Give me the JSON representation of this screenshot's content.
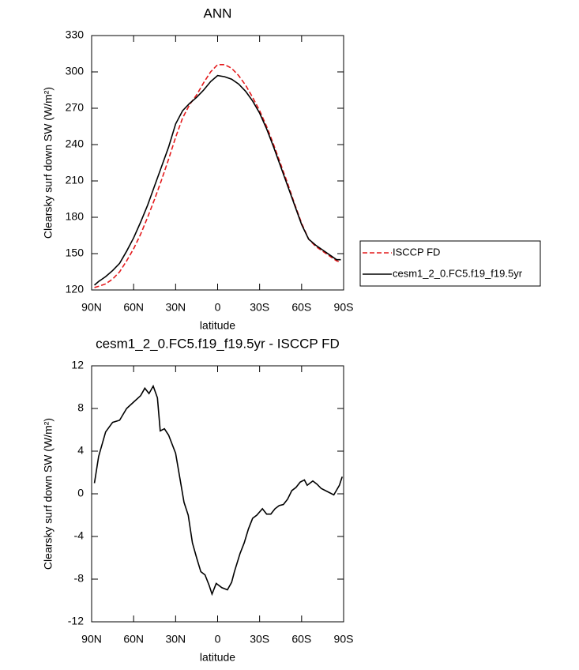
{
  "chart_data": [
    {
      "type": "line",
      "title": "ANN",
      "xlabel": "latitude",
      "ylabel": "Clearsky surf down SW (W/m²)",
      "x": [
        88,
        85,
        80,
        75,
        70,
        65,
        60,
        55,
        50,
        45,
        40,
        35,
        30,
        25,
        20,
        15,
        10,
        5,
        0,
        -5,
        -10,
        -15,
        -20,
        -25,
        -30,
        -35,
        -40,
        -45,
        -50,
        -55,
        -60,
        -65,
        -70,
        -75,
        -80,
        -85,
        -88
      ],
      "series": [
        {
          "name": "ISCCP FD",
          "color": "#e41a1c",
          "dash": true,
          "values": [
            122,
            123,
            125,
            129,
            135,
            144,
            154,
            166,
            180,
            195,
            211,
            228,
            246,
            262,
            273,
            281,
            291,
            300,
            306,
            306,
            303,
            297,
            289,
            279,
            268,
            255,
            240,
            224,
            208,
            191,
            175,
            162,
            156,
            152,
            148,
            144,
            143
          ]
        },
        {
          "name": "cesm1_2_0.FC5.f19_f19.5yr",
          "color": "#000000",
          "dash": false,
          "values": [
            124,
            127,
            131,
            136,
            142,
            152,
            163,
            176,
            190,
            206,
            222,
            238,
            257,
            268,
            274,
            279,
            285,
            292,
            297,
            296,
            294,
            290,
            284,
            276,
            266,
            253,
            238,
            222,
            206,
            190,
            174,
            162,
            157,
            153,
            149,
            145,
            145
          ]
        }
      ],
      "xlim": [
        90,
        -90
      ],
      "xticks": [
        {
          "value": 90,
          "label": "90N"
        },
        {
          "value": 60,
          "label": "60N"
        },
        {
          "value": 30,
          "label": "30N"
        },
        0,
        {
          "value": -30,
          "label": "30S"
        },
        {
          "value": -60,
          "label": "60S"
        },
        {
          "value": -90,
          "label": "90S"
        }
      ],
      "ylim": [
        120,
        330
      ],
      "yticks": [
        120,
        150,
        180,
        210,
        240,
        270,
        300,
        330
      ],
      "legend": "right"
    },
    {
      "type": "line",
      "title": "cesm1_2_0.FC5.f19_f19.5yr - ISCCP FD",
      "xlabel": "latitude",
      "ylabel": "Clearsky surf down SW (W/m²)",
      "x": [
        88,
        85,
        80,
        75,
        70,
        65,
        60,
        55,
        52,
        49,
        46,
        43,
        41,
        38,
        35,
        30,
        27,
        24,
        21,
        18,
        15,
        12,
        9,
        6,
        4,
        1,
        -3,
        -7,
        -10,
        -12,
        -16,
        -19,
        -22,
        -25,
        -28,
        -32,
        -35,
        -38,
        -41,
        -44,
        -47,
        -50,
        -53,
        -56,
        -59,
        -62,
        -64,
        -68,
        -71,
        -74,
        -80,
        -83,
        -87,
        -89
      ],
      "color": "#000000",
      "values": [
        1,
        3.5,
        5.8,
        6.7,
        6.9,
        8,
        8.6,
        9.2,
        9.9,
        9.4,
        10.1,
        9,
        5.9,
        6.1,
        5.5,
        3.8,
        1.5,
        -0.8,
        -2,
        -4.6,
        -6,
        -7.3,
        -7.6,
        -8.6,
        -9.4,
        -8.4,
        -8.8,
        -9,
        -8.3,
        -7.3,
        -5.6,
        -4.6,
        -3.3,
        -2.3,
        -2,
        -1.4,
        -1.9,
        -1.9,
        -1.4,
        -1.1,
        -1,
        -0.5,
        0.3,
        0.6,
        1.1,
        1.3,
        0.8,
        1.2,
        0.9,
        0.5,
        0.1,
        -0.1,
        0.8,
        1.6
      ],
      "xlim": [
        90,
        -90
      ],
      "xticks": [
        {
          "value": 90,
          "label": "90N"
        },
        {
          "value": 60,
          "label": "60N"
        },
        {
          "value": 30,
          "label": "30N"
        },
        0,
        {
          "value": -30,
          "label": "30S"
        },
        {
          "value": -60,
          "label": "60S"
        },
        {
          "value": -90,
          "label": "90S"
        }
      ],
      "ylim": [
        -12,
        12
      ],
      "yticks": [
        -12,
        -8,
        -4,
        0,
        4,
        8,
        12
      ]
    }
  ]
}
